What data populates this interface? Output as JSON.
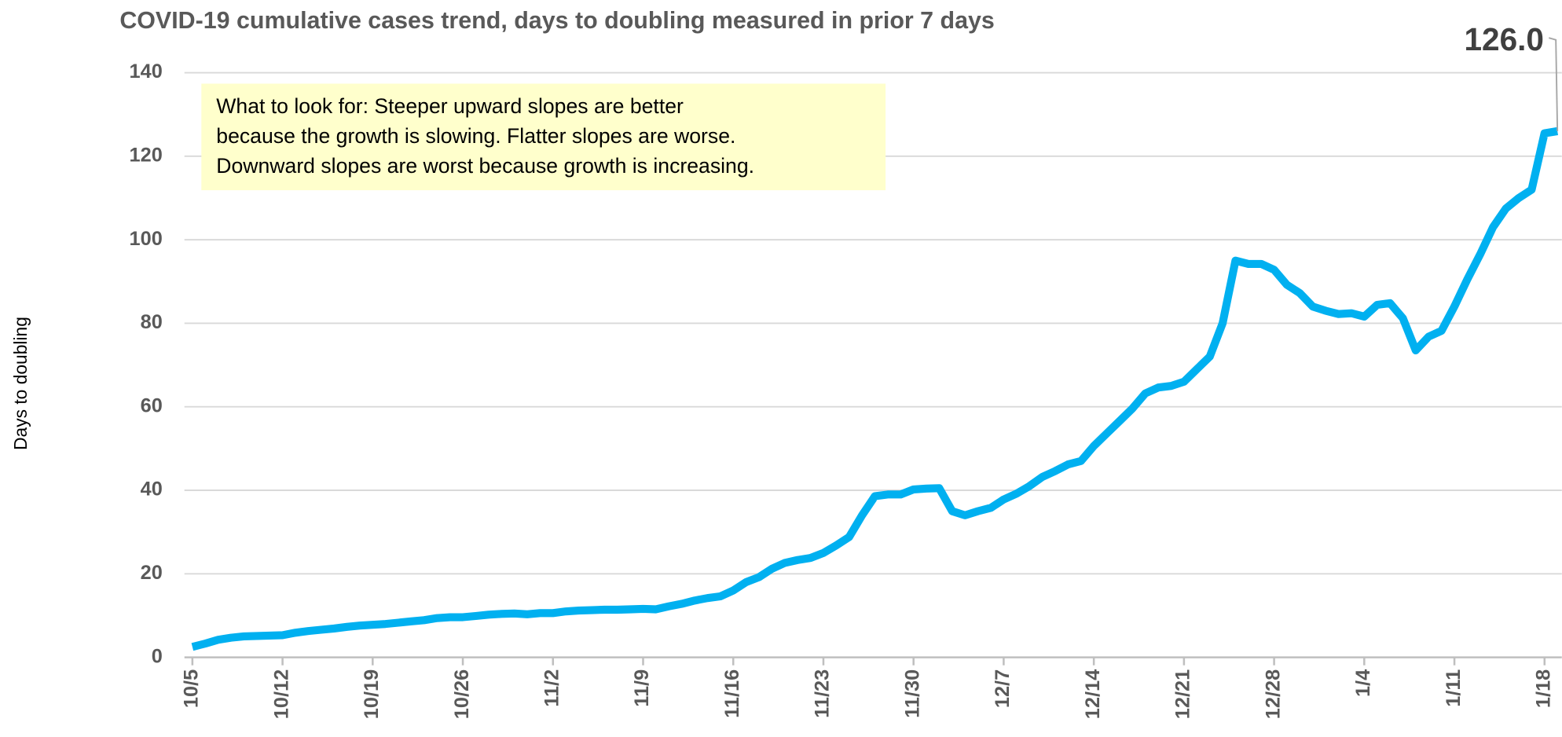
{
  "chart_data": {
    "type": "line",
    "title": "COVID-19 cumulative cases trend, days to doubling measured in prior 7 days",
    "y_label": "Days to doubling",
    "note": [
      "What to look for: Steeper upward slopes are better",
      "because the growth is slowing. Flatter slopes are worse.",
      "Downward slopes are worst because growth is increasing."
    ],
    "categories": [
      "10/5",
      null,
      null,
      null,
      null,
      null,
      null,
      "10/12",
      null,
      null,
      null,
      null,
      null,
      null,
      "10/19",
      null,
      null,
      null,
      null,
      null,
      null,
      "10/26",
      null,
      null,
      null,
      null,
      null,
      null,
      "11/2",
      null,
      null,
      null,
      null,
      null,
      null,
      "11/9",
      null,
      null,
      null,
      null,
      null,
      null,
      "11/16",
      null,
      null,
      null,
      null,
      null,
      null,
      "11/23",
      null,
      null,
      null,
      null,
      null,
      null,
      "11/30",
      null,
      null,
      null,
      null,
      null,
      null,
      "12/7",
      null,
      null,
      null,
      null,
      null,
      null,
      "12/14",
      null,
      null,
      null,
      null,
      null,
      null,
      "12/21",
      null,
      null,
      null,
      null,
      null,
      null,
      "12/28",
      null,
      null,
      null,
      null,
      null,
      null,
      "1/4",
      null,
      null,
      null,
      null,
      null,
      null,
      "1/11",
      null,
      null,
      null,
      null,
      null,
      null,
      "1/18",
      null
    ],
    "series": [
      {
        "name": "Days to doubling",
        "color": "#00b0f0",
        "values": [
          2.5,
          3.3,
          4.2,
          4.7,
          5.0,
          5.1,
          5.2,
          5.3,
          5.9,
          6.3,
          6.6,
          6.9,
          7.3,
          7.6,
          7.8,
          8.0,
          8.3,
          8.6,
          8.9,
          9.4,
          9.6,
          9.6,
          9.9,
          10.2,
          10.4,
          10.5,
          10.3,
          10.6,
          10.6,
          11.0,
          11.2,
          11.3,
          11.4,
          11.4,
          11.5,
          11.6,
          11.5,
          12.2,
          12.8,
          13.6,
          14.2,
          14.6,
          16.0,
          18.0,
          19.2,
          21.2,
          22.6,
          23.3,
          23.8,
          25.0,
          26.8,
          28.8,
          34.0,
          38.6,
          39.0,
          39.0,
          40.2,
          40.4,
          40.5,
          35.0,
          34.0,
          35.0,
          35.8,
          37.8,
          39.2,
          41.0,
          43.2,
          44.6,
          46.2,
          47.0,
          50.6,
          53.6,
          56.6,
          59.6,
          63.2,
          64.6,
          65.0,
          66.0,
          69.0,
          72.0,
          80.0,
          95.0,
          94.2,
          94.2,
          92.8,
          89.2,
          87.2,
          84.0,
          83.0,
          82.2,
          82.4,
          81.6,
          84.4,
          84.8,
          81.2,
          73.5,
          76.8,
          78.2,
          84.0,
          90.5,
          96.5,
          103.0,
          107.5,
          110.0,
          112.0,
          125.5,
          126.0
        ]
      }
    ],
    "value_labels": [
      null,
      null,
      null,
      null,
      null,
      null,
      null,
      null,
      null,
      null,
      null,
      null,
      null,
      null,
      null,
      null,
      null,
      null,
      null,
      null,
      null,
      null,
      null,
      null,
      null,
      null,
      null,
      null,
      null,
      null,
      null,
      null,
      null,
      null,
      null,
      null,
      null,
      null,
      null,
      null,
      null,
      null,
      null,
      null,
      null,
      null,
      null,
      null,
      null,
      null,
      null,
      null,
      null,
      null,
      null,
      null,
      null,
      null,
      null,
      null,
      null,
      null,
      null,
      null,
      null,
      null,
      null,
      null,
      null,
      null,
      null,
      null,
      null,
      null,
      null,
      null,
      null,
      null,
      null,
      null,
      null,
      null,
      null,
      null,
      null,
      null,
      null,
      null,
      null,
      null,
      null,
      null,
      null,
      null,
      null,
      null,
      null,
      null,
      null,
      null,
      null,
      null,
      null,
      null,
      null,
      null,
      "126.0"
    ],
    "ylim": [
      0,
      140
    ],
    "yticks": [
      0,
      20,
      40,
      60,
      80,
      100,
      120,
      140
    ],
    "grid": true
  }
}
